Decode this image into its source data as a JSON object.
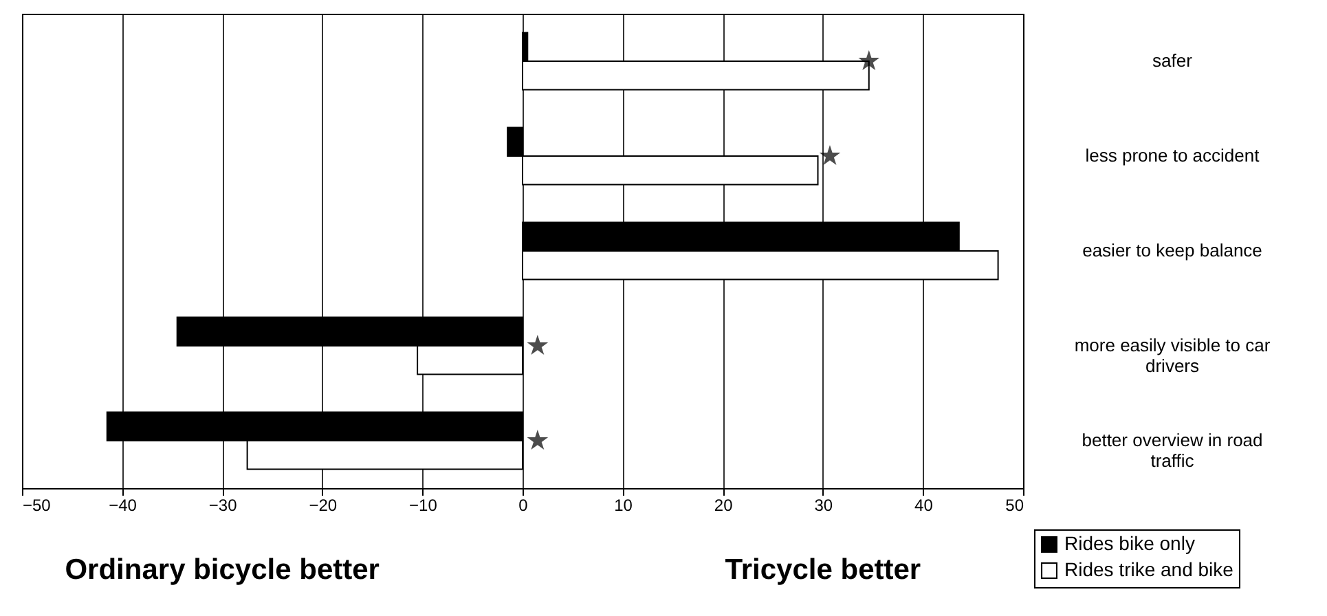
{
  "chart_data": {
    "type": "bar",
    "orientation": "horizontal",
    "categories": [
      "safer",
      "less prone to accident",
      "easier to keep balance",
      "more easily visible to car drivers",
      "better overview in road traffic"
    ],
    "series": [
      {
        "name": "Rides bike only",
        "color": "#000000",
        "values": [
          0.5,
          -1.5,
          43.6,
          -34.5,
          -41.5
        ]
      },
      {
        "name": "Rides trike and bike",
        "color": "#ffffff",
        "values": [
          34.6,
          29.5,
          47.5,
          -10.5,
          -27.5
        ]
      },
      {
        "type": "scatter",
        "marker": "star",
        "color": "#000000",
        "values": [
          34.6,
          30.7,
          null,
          1.5,
          1.5
        ]
      }
    ],
    "xlim": [
      -50,
      50
    ],
    "xticks": [
      -50,
      -40,
      -30,
      -20,
      -10,
      0,
      10,
      20,
      30,
      40,
      50
    ],
    "grid": "x",
    "legend": "bottom right",
    "annotations": [
      "Ordinary bicycle better",
      "Tricycle better"
    ]
  }
}
